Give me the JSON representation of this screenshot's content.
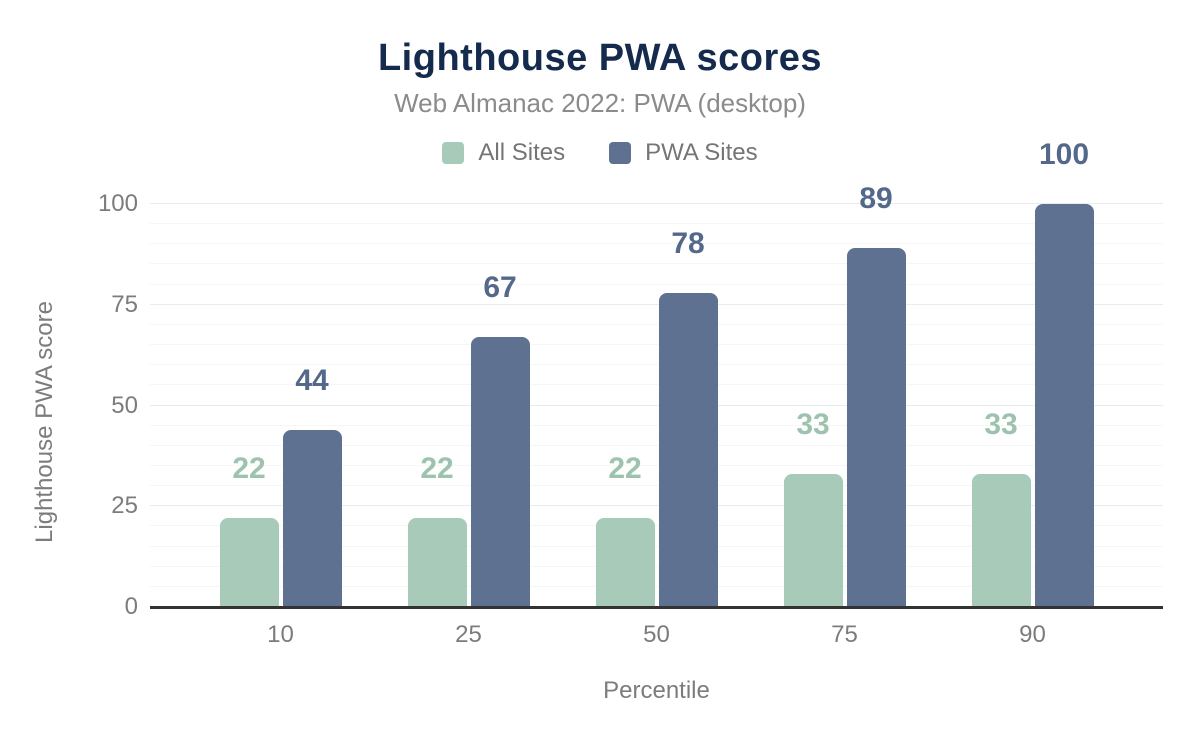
{
  "chart_data": {
    "type": "bar",
    "title": "Lighthouse PWA scores",
    "subtitle": "Web Almanac 2022: PWA (desktop)",
    "xlabel": "Percentile",
    "ylabel": "Lighthouse PWA score",
    "categories": [
      "10",
      "25",
      "50",
      "75",
      "90"
    ],
    "series": [
      {
        "name": "All Sites",
        "color": "#a7cbb8",
        "label_color": "#9dc3ae",
        "values": [
          22,
          22,
          22,
          33,
          33
        ]
      },
      {
        "name": "PWA Sites",
        "color": "#5f7190",
        "label_color": "#54688a",
        "values": [
          44,
          67,
          78,
          89,
          100
        ]
      }
    ],
    "ylim": [
      0,
      100
    ],
    "yticks": [
      0,
      25,
      50,
      75,
      100
    ],
    "grid": {
      "minor_step": 5,
      "major_step": 25,
      "visible": true
    },
    "legend_position": "top"
  },
  "colors": {
    "title": "#142b4d",
    "subtitle_text": "#8b8b8b",
    "axis_text": "#7c7c7c",
    "legend_text": "#757575",
    "axis_line": "#333333",
    "gridline_minor": "#f6f6f6",
    "gridline_major": "#ebebeb",
    "background": "#ffffff"
  }
}
